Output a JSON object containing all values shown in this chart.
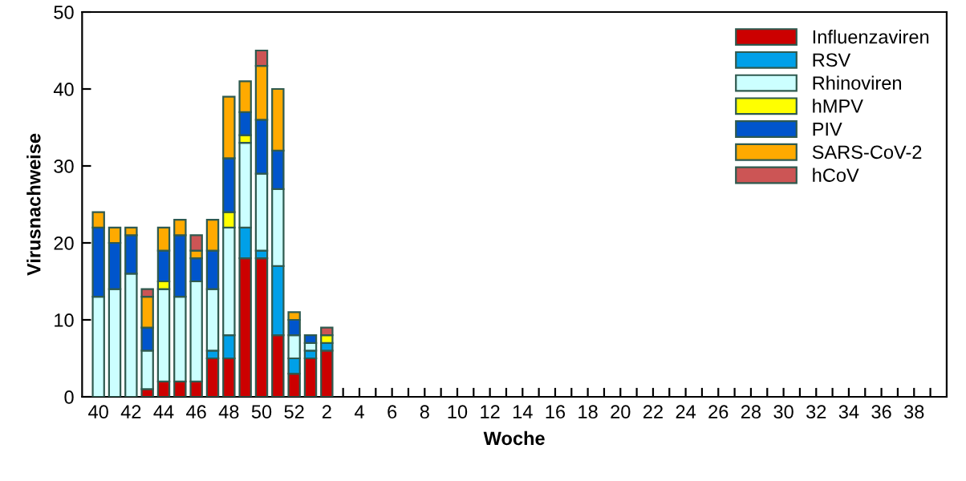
{
  "chart_data": {
    "type": "bar",
    "stacked": true,
    "xlabel": "Woche",
    "ylabel": "Virusnachweise",
    "categories": [
      "40",
      null,
      "42",
      null,
      "44",
      null,
      "46",
      null,
      "48",
      null,
      "50",
      null,
      "52",
      null,
      "2",
      null,
      "4",
      null,
      "6",
      null,
      "8",
      null,
      "10",
      null,
      "12",
      null,
      "14",
      null,
      "16",
      null,
      "18",
      null,
      "20",
      null,
      "22",
      null,
      "24",
      null,
      "26",
      null,
      "28",
      null,
      "30",
      null,
      "32",
      null,
      "34",
      null,
      "36",
      null,
      "38",
      null
    ],
    "ylim": [
      0,
      50
    ],
    "yticks": [
      0,
      10,
      20,
      30,
      40,
      50
    ],
    "legend": "top right",
    "grid": false,
    "series": [
      {
        "name": "Influenzaviren",
        "color": "#cc0000",
        "values": [
          0,
          0,
          0,
          1,
          2,
          2,
          2,
          5,
          5,
          18,
          18,
          8,
          3,
          5,
          6,
          null,
          null,
          null,
          null,
          null,
          null,
          null,
          null,
          null,
          null,
          null,
          null,
          null,
          null,
          null,
          null,
          null,
          null,
          null,
          null,
          null,
          null,
          null,
          null,
          null,
          null,
          null,
          null,
          null,
          null,
          null,
          null,
          null,
          null,
          null,
          null,
          null
        ]
      },
      {
        "name": "RSV",
        "color": "#00a0e8",
        "values": [
          0,
          0,
          0,
          0,
          0,
          0,
          0,
          1,
          3,
          4,
          1,
          9,
          2,
          1,
          1,
          null,
          null,
          null,
          null,
          null,
          null,
          null,
          null,
          null,
          null,
          null,
          null,
          null,
          null,
          null,
          null,
          null,
          null,
          null,
          null,
          null,
          null,
          null,
          null,
          null,
          null,
          null,
          null,
          null,
          null,
          null,
          null,
          null,
          null,
          null,
          null,
          null
        ]
      },
      {
        "name": "Rhinoviren",
        "color": "#ccffff",
        "values": [
          13,
          14,
          16,
          5,
          12,
          11,
          13,
          8,
          14,
          11,
          10,
          10,
          3,
          1,
          0,
          null,
          null,
          null,
          null,
          null,
          null,
          null,
          null,
          null,
          null,
          null,
          null,
          null,
          null,
          null,
          null,
          null,
          null,
          null,
          null,
          null,
          null,
          null,
          null,
          null,
          null,
          null,
          null,
          null,
          null,
          null,
          null,
          null,
          null,
          null,
          null,
          null
        ]
      },
      {
        "name": "hMPV",
        "color": "#ffff00",
        "values": [
          0,
          0,
          0,
          0,
          1,
          0,
          0,
          0,
          2,
          1,
          0,
          0,
          0,
          0,
          1,
          null,
          null,
          null,
          null,
          null,
          null,
          null,
          null,
          null,
          null,
          null,
          null,
          null,
          null,
          null,
          null,
          null,
          null,
          null,
          null,
          null,
          null,
          null,
          null,
          null,
          null,
          null,
          null,
          null,
          null,
          null,
          null,
          null,
          null,
          null,
          null,
          null
        ]
      },
      {
        "name": "PIV",
        "color": "#0055cc",
        "values": [
          9,
          6,
          5,
          3,
          4,
          8,
          3,
          5,
          7,
          3,
          7,
          5,
          2,
          1,
          0,
          null,
          null,
          null,
          null,
          null,
          null,
          null,
          null,
          null,
          null,
          null,
          null,
          null,
          null,
          null,
          null,
          null,
          null,
          null,
          null,
          null,
          null,
          null,
          null,
          null,
          null,
          null,
          null,
          null,
          null,
          null,
          null,
          null,
          null,
          null,
          null,
          null
        ]
      },
      {
        "name": "SARS-CoV-2",
        "color": "#ffaa00",
        "values": [
          2,
          2,
          1,
          4,
          3,
          2,
          1,
          4,
          8,
          4,
          7,
          8,
          1,
          0,
          0,
          null,
          null,
          null,
          null,
          null,
          null,
          null,
          null,
          null,
          null,
          null,
          null,
          null,
          null,
          null,
          null,
          null,
          null,
          null,
          null,
          null,
          null,
          null,
          null,
          null,
          null,
          null,
          null,
          null,
          null,
          null,
          null,
          null,
          null,
          null,
          null,
          null
        ]
      },
      {
        "name": "hCoV",
        "color": "#cc5555",
        "values": [
          0,
          0,
          0,
          1,
          0,
          0,
          2,
          0,
          0,
          0,
          2,
          0,
          0,
          0,
          1,
          null,
          null,
          null,
          null,
          null,
          null,
          null,
          null,
          null,
          null,
          null,
          null,
          null,
          null,
          null,
          null,
          null,
          null,
          null,
          null,
          null,
          null,
          null,
          null,
          null,
          null,
          null,
          null,
          null,
          null,
          null,
          null,
          null,
          null,
          null,
          null,
          null
        ]
      }
    ]
  }
}
